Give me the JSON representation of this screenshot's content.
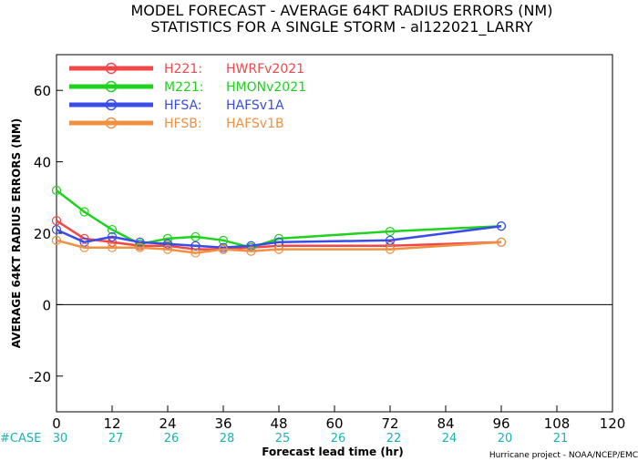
{
  "chart_data": {
    "type": "line",
    "title": "MODEL FORECAST - AVERAGE 64KT RADIUS ERRORS (NM)",
    "subtitle": "STATISTICS FOR A SINGLE STORM - al122021_LARRY",
    "xlabel": "Forecast lead time (hr)",
    "ylabel": "AVERAGE 64KT RADIUS ERRORS (NM)",
    "xlim": [
      0,
      120
    ],
    "ylim": [
      -30,
      70
    ],
    "x_ticks": [
      0,
      12,
      24,
      36,
      48,
      60,
      72,
      84,
      96,
      108,
      120
    ],
    "y_ticks": [
      -20,
      0,
      20,
      40,
      60
    ],
    "zero_line": true,
    "grid": false,
    "legend_position": "top-left",
    "series": [
      {
        "name": "H221: HWRFv2021",
        "label_code": "H221:",
        "label_model": "HWRFv2021",
        "color": "#f04848",
        "x": [
          0,
          6,
          12,
          18,
          24,
          30,
          36,
          42,
          48,
          72,
          96
        ],
        "y": [
          23.5,
          18.5,
          17.5,
          16.5,
          16.5,
          15.5,
          15.5,
          16,
          16.5,
          16.5,
          17.5
        ]
      },
      {
        "name": "M221: HMONv2021",
        "label_code": "M221:",
        "label_model": "HMONv2021",
        "color": "#1ed21e",
        "x": [
          0,
          6,
          12,
          18,
          24,
          30,
          36,
          42,
          48,
          72,
          96
        ],
        "y": [
          32,
          26,
          21,
          17,
          18.5,
          19,
          18,
          16,
          18.5,
          20.5,
          22
        ]
      },
      {
        "name": "HFSA: HAFSv1A",
        "label_code": "HFSA:",
        "label_model": "HAFSv1A",
        "color": "#3a4ce8",
        "x": [
          0,
          6,
          12,
          18,
          24,
          30,
          36,
          42,
          48,
          72,
          96
        ],
        "y": [
          21,
          17.5,
          19,
          17.5,
          17,
          16.5,
          16,
          16.5,
          17.5,
          18,
          22
        ]
      },
      {
        "name": "HFSB: HAFSv1B",
        "label_code": "HFSB:",
        "label_model": "HAFSv1B",
        "color": "#f09040",
        "x": [
          0,
          6,
          12,
          18,
          24,
          30,
          36,
          42,
          48,
          72,
          96
        ],
        "y": [
          18,
          16,
          16,
          16,
          15.5,
          14.5,
          15.5,
          15,
          15.5,
          15.5,
          17.5
        ]
      }
    ],
    "case_label": "#CASE",
    "case_counts": [
      {
        "x": 0,
        "n": "30"
      },
      {
        "x": 12,
        "n": "27"
      },
      {
        "x": 24,
        "n": "26"
      },
      {
        "x": 36,
        "n": "28"
      },
      {
        "x": 48,
        "n": "25"
      },
      {
        "x": 60,
        "n": "26"
      },
      {
        "x": 72,
        "n": "22"
      },
      {
        "x": 84,
        "n": "24"
      },
      {
        "x": 96,
        "n": "20"
      },
      {
        "x": 108,
        "n": "21"
      }
    ],
    "credit": "Hurricane project - NOAA/NCEP/EMC",
    "colors": {
      "case_counts": "#18b4b4",
      "axis": "#000000"
    }
  }
}
